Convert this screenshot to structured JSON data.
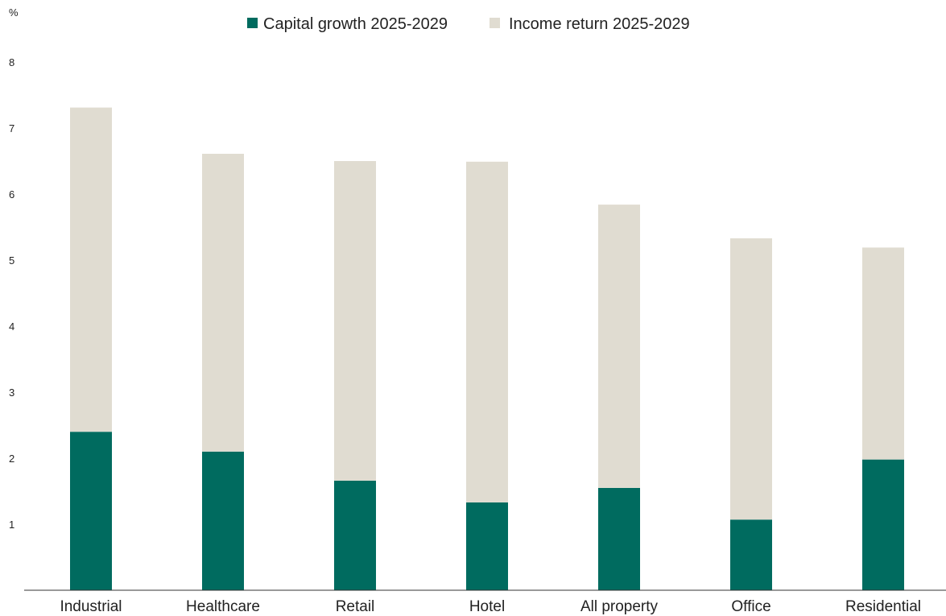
{
  "chart_data": {
    "type": "bar",
    "stacked": true,
    "ylabel": "%",
    "ylim": [
      0,
      8
    ],
    "yticks": [
      1,
      2,
      3,
      4,
      5,
      6,
      7,
      8
    ],
    "grid": false,
    "legend_position": "top-center",
    "categories": [
      "Industrial",
      "Healthcare",
      "Retail",
      "Hotel",
      "All property",
      "Office",
      "Residential"
    ],
    "series": [
      {
        "name": "Capital growth 2025-2029",
        "color": "#006b5f",
        "values": [
          2.4,
          2.1,
          1.66,
          1.33,
          1.55,
          1.07,
          1.98
        ]
      },
      {
        "name": "Income return 2025-2029",
        "color": "#e0dcd1",
        "values": [
          4.91,
          4.51,
          4.84,
          5.16,
          4.29,
          4.26,
          3.21
        ]
      }
    ]
  }
}
